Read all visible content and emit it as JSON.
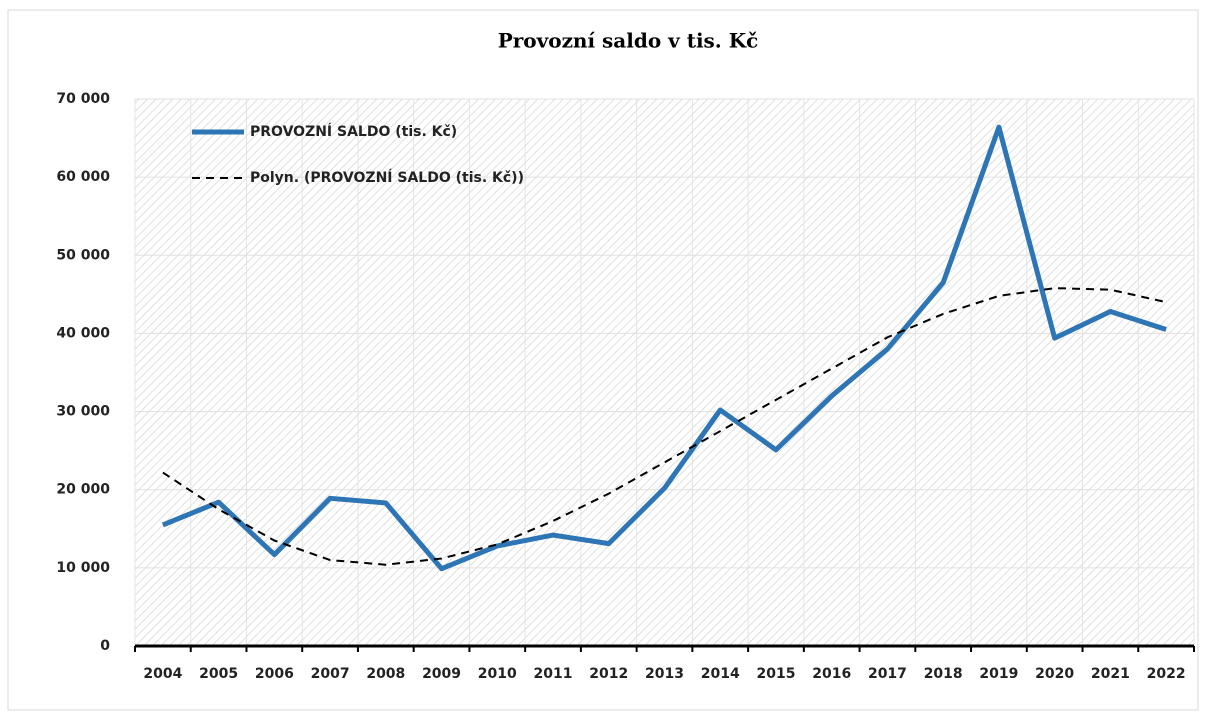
{
  "chart_data": {
    "type": "line",
    "title": "Provozní saldo v tis. Kč",
    "categories": [
      "2004",
      "2005",
      "2006",
      "2007",
      "2008",
      "2009",
      "2010",
      "2011",
      "2012",
      "2013",
      "2014",
      "2015",
      "2016",
      "2017",
      "2018",
      "2019",
      "2020",
      "2021",
      "2022"
    ],
    "series": [
      {
        "name": "PROVOZNÍ SALDO (tis. Kč)",
        "color": "#2e75b6",
        "dashed": false,
        "values": [
          15500,
          18400,
          11700,
          18900,
          18300,
          9900,
          12800,
          14200,
          13100,
          20200,
          30200,
          25100,
          32000,
          38000,
          46500,
          66400,
          39400,
          42800,
          40500
        ]
      },
      {
        "name": "Polyn. (PROVOZNÍ SALDO (tis. Kč))",
        "color": "#000000",
        "dashed": true,
        "values": [
          22200,
          17500,
          13500,
          11000,
          10400,
          11200,
          13000,
          16000,
          19500,
          23500,
          27500,
          31500,
          35500,
          39500,
          42500,
          44800,
          45800,
          45600,
          44000
        ]
      }
    ],
    "ylim": [
      0,
      70000
    ],
    "yticks": [
      0,
      {
        "value": 10000,
        "label": "10 000"
      },
      {
        "value": 20000,
        "label": "20 000"
      },
      {
        "value": 30000,
        "label": "30 000"
      },
      {
        "value": 40000,
        "label": "40 000"
      },
      {
        "value": 50000,
        "label": "50 000"
      },
      {
        "value": 60000,
        "label": "60 000"
      },
      {
        "value": 70000,
        "label": "70 000"
      }
    ],
    "grid": true,
    "legend": "upper left"
  }
}
